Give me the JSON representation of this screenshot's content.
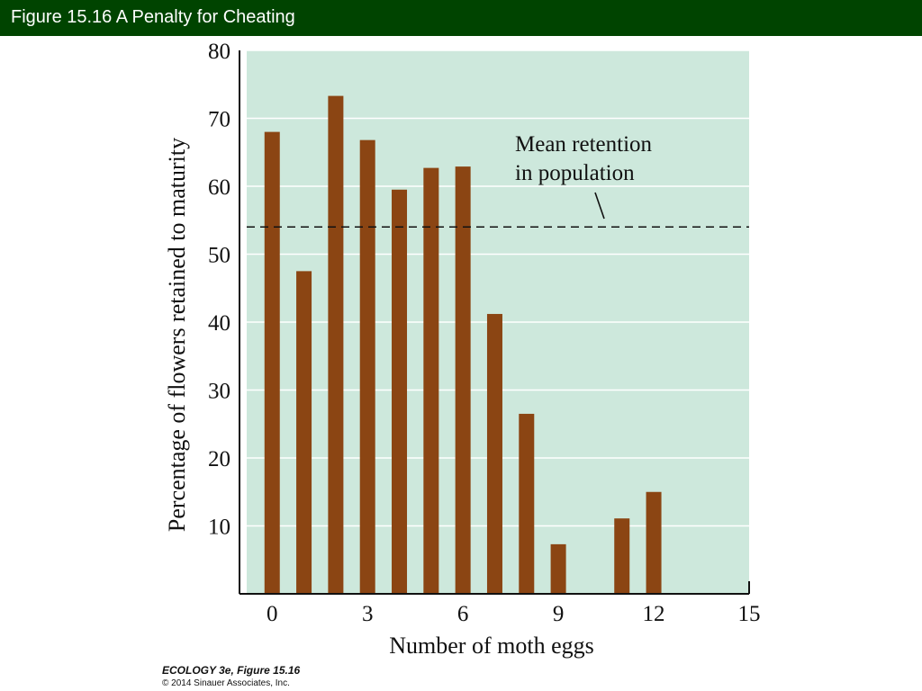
{
  "header": {
    "title": "Figure 15.16  A Penalty for Cheating"
  },
  "chart_data": {
    "type": "bar",
    "xlabel": "Number of moth eggs",
    "ylabel": "Percentage of flowers retained to maturity",
    "xlim": [
      -0.8,
      15
    ],
    "ylim": [
      0,
      80
    ],
    "x_ticks": [
      0,
      3,
      6,
      9,
      12,
      15
    ],
    "y_ticks": [
      10,
      20,
      30,
      40,
      50,
      60,
      70,
      80
    ],
    "x": [
      0,
      1,
      2,
      3,
      4,
      5,
      6,
      7,
      8,
      9,
      11,
      12
    ],
    "values": [
      68,
      47.5,
      73.3,
      66.8,
      59.5,
      62.7,
      62.9,
      41.2,
      26.5,
      7.3,
      11.1,
      15
    ],
    "bar_color": "#8b4513",
    "plot_background": "#cde8dc",
    "grid": true,
    "reference_line": {
      "value": 54,
      "label_line1": "Mean retention",
      "label_line2": "in population"
    }
  },
  "credit": {
    "line1": "ECOLOGY 3e, Figure 15.16",
    "line2": "© 2014 Sinauer Associates, Inc."
  }
}
